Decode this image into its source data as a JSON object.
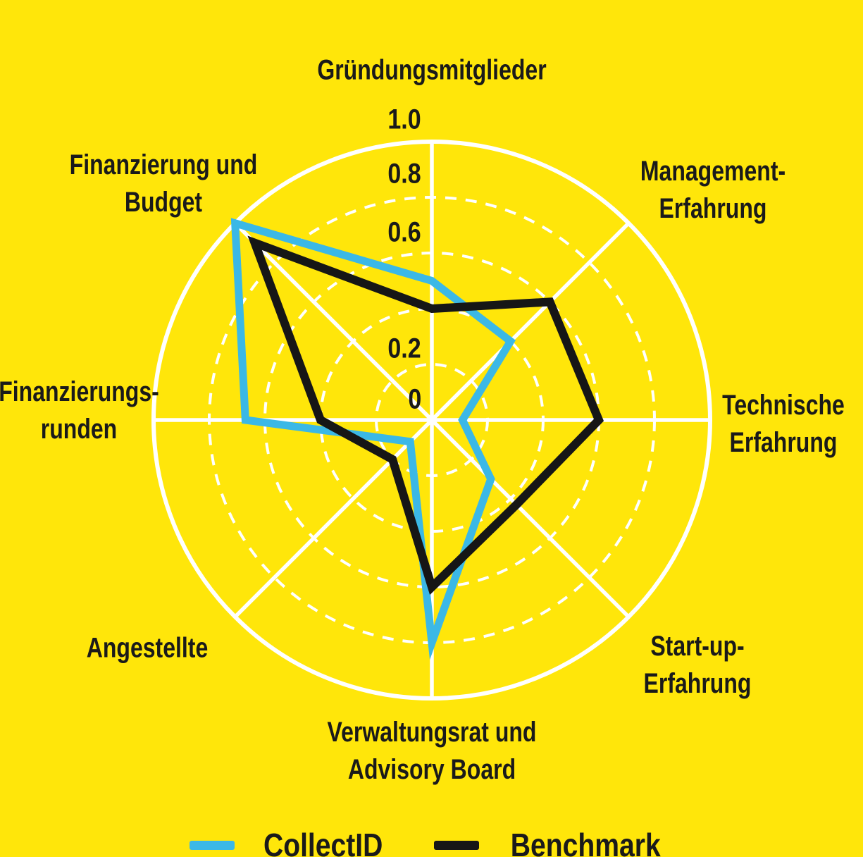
{
  "chart_data": {
    "type": "radar",
    "title": "",
    "scale": {
      "min": 0,
      "max": 1.0
    },
    "grid": true,
    "legend_position": "bottom",
    "rings": [
      {
        "value": 0.2,
        "style": "dashed"
      },
      {
        "value": 0.4,
        "style": "dashed"
      },
      {
        "value": 0.6,
        "style": "dashed"
      },
      {
        "value": 0.8,
        "style": "dashed"
      },
      {
        "value": 1.0,
        "style": "solid"
      }
    ],
    "ticks": [
      {
        "label": "1.0",
        "value": 1.0
      },
      {
        "label": "0.8",
        "value": 0.8
      },
      {
        "label": "0.6",
        "value": 0.6
      },
      {
        "label": "0.2",
        "value": 0.2
      },
      {
        "label": "0",
        "value": 0
      }
    ],
    "axes": [
      {
        "label": "Gründungsmitglieder"
      },
      {
        "label": "Management-\nErfahrung"
      },
      {
        "label": "Technische\nErfahrung"
      },
      {
        "label": "Start-up-\nErfahrung"
      },
      {
        "label": "Verwaltungsrat und\nAdvisory Board"
      },
      {
        "label": "Angestellte"
      },
      {
        "label": "Finanzierungs-\nrunden"
      },
      {
        "label": "Finanzierung und\nBudget"
      }
    ],
    "series": [
      {
        "name": "CollectID",
        "color": "#3BB8E6",
        "values": [
          0.5,
          0.4,
          0.11,
          0.3,
          0.8,
          0.11,
          0.67,
          1.0
        ]
      },
      {
        "name": "Benchmark",
        "color": "#161616",
        "values": [
          0.4,
          0.6,
          0.6,
          0.43,
          0.6,
          0.2,
          0.4,
          0.9
        ]
      }
    ]
  },
  "colors": {
    "background": "#FFE60A",
    "grid": "#FFFFFF",
    "text": "#1A1A1A"
  }
}
